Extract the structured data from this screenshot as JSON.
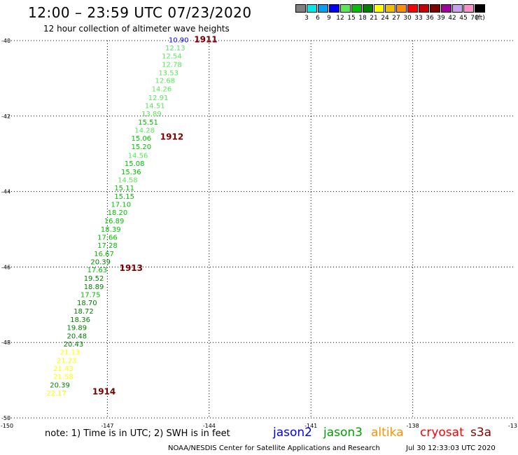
{
  "title": "12:00 – 23:59 UTC 07/23/2020",
  "subtitle": "12 hour collection of altimeter wave heights",
  "legend": {
    "labels": [
      "3",
      "6",
      "9",
      "12",
      "15",
      "18",
      "21",
      "24",
      "27",
      "30",
      "33",
      "36",
      "39",
      "42",
      "45",
      "70",
      "(ft)"
    ],
    "colors": [
      "#808080",
      "#00e8e8",
      "#00a0f0",
      "#0000ff",
      "#58e858",
      "#00c000",
      "#008000",
      "#ffff00",
      "#f0c000",
      "#ff9000",
      "#ff0000",
      "#c80000",
      "#800000",
      "#a000a0",
      "#c8a0f0",
      "#ff90c8",
      "#000000"
    ]
  },
  "axes": {
    "lon_labels": [
      "-150",
      "-147",
      "-144",
      "-141",
      "-138",
      "-13"
    ],
    "lat_labels": [
      "-40",
      "-42",
      "-44",
      "-46",
      "-48",
      "-50"
    ]
  },
  "chart_data": {
    "type": "scatter",
    "xlim": [
      -150,
      -135
    ],
    "ylim": [
      -50,
      -40
    ],
    "time_labels": [
      {
        "text": "1911",
        "lon": -144.1,
        "lat": -39.97
      },
      {
        "text": "1912",
        "lon": -145.1,
        "lat": -42.55
      },
      {
        "text": "1913",
        "lon": -146.3,
        "lat": -46.03
      },
      {
        "text": "1914",
        "lon": -147.1,
        "lat": -49.3
      }
    ],
    "points": [
      {
        "lon": -144.9,
        "lat": -39.97,
        "swh": "10.90",
        "color": "#0000ff"
      },
      {
        "lon": -145.0,
        "lat": -40.19,
        "swh": "12.13",
        "color": "#58e858"
      },
      {
        "lon": -145.1,
        "lat": -40.4,
        "swh": "12.54",
        "color": "#58e858"
      },
      {
        "lon": -145.1,
        "lat": -40.62,
        "swh": "12.78",
        "color": "#58e858"
      },
      {
        "lon": -145.2,
        "lat": -40.84,
        "swh": "13.53",
        "color": "#58e858"
      },
      {
        "lon": -145.3,
        "lat": -41.05,
        "swh": "12.68",
        "color": "#58e858"
      },
      {
        "lon": -145.4,
        "lat": -41.27,
        "swh": "14.26",
        "color": "#58e858"
      },
      {
        "lon": -145.5,
        "lat": -41.5,
        "swh": "12.91",
        "color": "#58e858"
      },
      {
        "lon": -145.6,
        "lat": -41.72,
        "swh": "14.51",
        "color": "#58e858"
      },
      {
        "lon": -145.7,
        "lat": -41.93,
        "swh": "13.89",
        "color": "#58e858"
      },
      {
        "lon": -145.8,
        "lat": -42.15,
        "swh": "15.51",
        "color": "#00c000"
      },
      {
        "lon": -145.9,
        "lat": -42.37,
        "swh": "14.28",
        "color": "#58e858"
      },
      {
        "lon": -146.0,
        "lat": -42.58,
        "swh": "15.06",
        "color": "#00c000"
      },
      {
        "lon": -146.0,
        "lat": -42.8,
        "swh": "15.20",
        "color": "#00c000"
      },
      {
        "lon": -146.1,
        "lat": -43.03,
        "swh": "14.56",
        "color": "#58e858"
      },
      {
        "lon": -146.2,
        "lat": -43.25,
        "swh": "15.08",
        "color": "#00c000"
      },
      {
        "lon": -146.3,
        "lat": -43.47,
        "swh": "15.36",
        "color": "#00c000"
      },
      {
        "lon": -146.4,
        "lat": -43.68,
        "swh": "14.58",
        "color": "#58e858"
      },
      {
        "lon": -146.5,
        "lat": -43.9,
        "swh": "15.11",
        "color": "#00c000"
      },
      {
        "lon": -146.5,
        "lat": -44.12,
        "swh": "15.15",
        "color": "#00c000"
      },
      {
        "lon": -146.6,
        "lat": -44.33,
        "swh": "17.10",
        "color": "#00c000"
      },
      {
        "lon": -146.7,
        "lat": -44.55,
        "swh": "18.20",
        "color": "#00c000"
      },
      {
        "lon": -146.8,
        "lat": -44.77,
        "swh": "16.89",
        "color": "#00c000"
      },
      {
        "lon": -146.9,
        "lat": -44.99,
        "swh": "18.39",
        "color": "#00c000"
      },
      {
        "lon": -147.0,
        "lat": -45.2,
        "swh": "17.66",
        "color": "#00c000"
      },
      {
        "lon": -147.0,
        "lat": -45.42,
        "swh": "17.28",
        "color": "#00c000"
      },
      {
        "lon": -147.1,
        "lat": -45.64,
        "swh": "16.67",
        "color": "#00c000"
      },
      {
        "lon": -147.2,
        "lat": -45.85,
        "swh": "20.39",
        "color": "#008000"
      },
      {
        "lon": -147.3,
        "lat": -46.07,
        "swh": "17.63",
        "color": "#00c000"
      },
      {
        "lon": -147.4,
        "lat": -46.29,
        "swh": "19.52",
        "color": "#008000"
      },
      {
        "lon": -147.4,
        "lat": -46.51,
        "swh": "18.89",
        "color": "#008000"
      },
      {
        "lon": -147.5,
        "lat": -46.73,
        "swh": "17.75",
        "color": "#00c000"
      },
      {
        "lon": -147.6,
        "lat": -46.94,
        "swh": "18.70",
        "color": "#008000"
      },
      {
        "lon": -147.7,
        "lat": -47.16,
        "swh": "18.72",
        "color": "#008000"
      },
      {
        "lon": -147.8,
        "lat": -47.38,
        "swh": "18.36",
        "color": "#008000"
      },
      {
        "lon": -147.9,
        "lat": -47.6,
        "swh": "19.89",
        "color": "#008000"
      },
      {
        "lon": -147.9,
        "lat": -47.82,
        "swh": "20.48",
        "color": "#008000"
      },
      {
        "lon": -148.0,
        "lat": -48.03,
        "swh": "20.43",
        "color": "#008000"
      },
      {
        "lon": -148.1,
        "lat": -48.25,
        "swh": "21.13",
        "color": "#ffff00"
      },
      {
        "lon": -148.2,
        "lat": -48.47,
        "swh": "21.23",
        "color": "#ffff00"
      },
      {
        "lon": -148.3,
        "lat": -48.68,
        "swh": "21.43",
        "color": "#ffff00"
      },
      {
        "lon": -148.3,
        "lat": -48.9,
        "swh": "21.58",
        "color": "#ffff00"
      },
      {
        "lon": -148.4,
        "lat": -49.12,
        "swh": "20.39",
        "color": "#008000"
      },
      {
        "lon": -148.5,
        "lat": -49.33,
        "swh": "22.17",
        "color": "#ffff00"
      }
    ]
  },
  "note": "note: 1) Time is in UTC; 2) SWH is in feet",
  "satellites": [
    {
      "name": "jason2",
      "color": "#0000ff"
    },
    {
      "name": "jason3",
      "color": "#00a000"
    },
    {
      "name": "altika",
      "color": "#ff9000"
    },
    {
      "name": "cryosat",
      "color": "#ff0000"
    },
    {
      "name": "s3a",
      "color": "#800000"
    }
  ],
  "credit": "NOAA/NESDIS Center for Satellite Applications and Research",
  "timestamp": "Jul 30 12:33:03 UTC 2020"
}
